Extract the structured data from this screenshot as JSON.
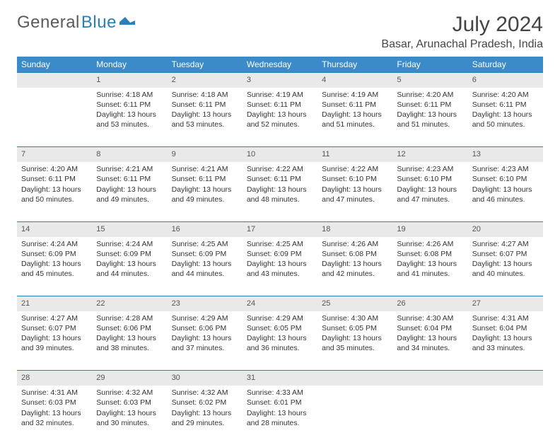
{
  "brand": {
    "part1": "General",
    "part2": "Blue"
  },
  "title": "July 2024",
  "location": "Basar, Arunachal Pradesh, India",
  "colors": {
    "header_bg": "#3b8bc8",
    "header_text": "#ffffff",
    "daynum_bg": "#e9e9e9",
    "rule": "#2a7fba",
    "text": "#333333",
    "logo_gray": "#5a5a5a",
    "logo_blue": "#2a7fba"
  },
  "typography": {
    "month_title_size": 30,
    "location_size": 16,
    "weekday_size": 12,
    "cell_size": 10.5
  },
  "weekdays": [
    "Sunday",
    "Monday",
    "Tuesday",
    "Wednesday",
    "Thursday",
    "Friday",
    "Saturday"
  ],
  "start_offset": 1,
  "days": [
    {
      "n": 1,
      "sunrise": "4:18 AM",
      "sunset": "6:11 PM",
      "daylight": "13 hours and 53 minutes."
    },
    {
      "n": 2,
      "sunrise": "4:18 AM",
      "sunset": "6:11 PM",
      "daylight": "13 hours and 53 minutes."
    },
    {
      "n": 3,
      "sunrise": "4:19 AM",
      "sunset": "6:11 PM",
      "daylight": "13 hours and 52 minutes."
    },
    {
      "n": 4,
      "sunrise": "4:19 AM",
      "sunset": "6:11 PM",
      "daylight": "13 hours and 51 minutes."
    },
    {
      "n": 5,
      "sunrise": "4:20 AM",
      "sunset": "6:11 PM",
      "daylight": "13 hours and 51 minutes."
    },
    {
      "n": 6,
      "sunrise": "4:20 AM",
      "sunset": "6:11 PM",
      "daylight": "13 hours and 50 minutes."
    },
    {
      "n": 7,
      "sunrise": "4:20 AM",
      "sunset": "6:11 PM",
      "daylight": "13 hours and 50 minutes."
    },
    {
      "n": 8,
      "sunrise": "4:21 AM",
      "sunset": "6:11 PM",
      "daylight": "13 hours and 49 minutes."
    },
    {
      "n": 9,
      "sunrise": "4:21 AM",
      "sunset": "6:11 PM",
      "daylight": "13 hours and 49 minutes."
    },
    {
      "n": 10,
      "sunrise": "4:22 AM",
      "sunset": "6:11 PM",
      "daylight": "13 hours and 48 minutes."
    },
    {
      "n": 11,
      "sunrise": "4:22 AM",
      "sunset": "6:10 PM",
      "daylight": "13 hours and 47 minutes."
    },
    {
      "n": 12,
      "sunrise": "4:23 AM",
      "sunset": "6:10 PM",
      "daylight": "13 hours and 47 minutes."
    },
    {
      "n": 13,
      "sunrise": "4:23 AM",
      "sunset": "6:10 PM",
      "daylight": "13 hours and 46 minutes."
    },
    {
      "n": 14,
      "sunrise": "4:24 AM",
      "sunset": "6:09 PM",
      "daylight": "13 hours and 45 minutes."
    },
    {
      "n": 15,
      "sunrise": "4:24 AM",
      "sunset": "6:09 PM",
      "daylight": "13 hours and 44 minutes."
    },
    {
      "n": 16,
      "sunrise": "4:25 AM",
      "sunset": "6:09 PM",
      "daylight": "13 hours and 44 minutes."
    },
    {
      "n": 17,
      "sunrise": "4:25 AM",
      "sunset": "6:09 PM",
      "daylight": "13 hours and 43 minutes."
    },
    {
      "n": 18,
      "sunrise": "4:26 AM",
      "sunset": "6:08 PM",
      "daylight": "13 hours and 42 minutes."
    },
    {
      "n": 19,
      "sunrise": "4:26 AM",
      "sunset": "6:08 PM",
      "daylight": "13 hours and 41 minutes."
    },
    {
      "n": 20,
      "sunrise": "4:27 AM",
      "sunset": "6:07 PM",
      "daylight": "13 hours and 40 minutes."
    },
    {
      "n": 21,
      "sunrise": "4:27 AM",
      "sunset": "6:07 PM",
      "daylight": "13 hours and 39 minutes."
    },
    {
      "n": 22,
      "sunrise": "4:28 AM",
      "sunset": "6:06 PM",
      "daylight": "13 hours and 38 minutes."
    },
    {
      "n": 23,
      "sunrise": "4:29 AM",
      "sunset": "6:06 PM",
      "daylight": "13 hours and 37 minutes."
    },
    {
      "n": 24,
      "sunrise": "4:29 AM",
      "sunset": "6:05 PM",
      "daylight": "13 hours and 36 minutes."
    },
    {
      "n": 25,
      "sunrise": "4:30 AM",
      "sunset": "6:05 PM",
      "daylight": "13 hours and 35 minutes."
    },
    {
      "n": 26,
      "sunrise": "4:30 AM",
      "sunset": "6:04 PM",
      "daylight": "13 hours and 34 minutes."
    },
    {
      "n": 27,
      "sunrise": "4:31 AM",
      "sunset": "6:04 PM",
      "daylight": "13 hours and 33 minutes."
    },
    {
      "n": 28,
      "sunrise": "4:31 AM",
      "sunset": "6:03 PM",
      "daylight": "13 hours and 32 minutes."
    },
    {
      "n": 29,
      "sunrise": "4:32 AM",
      "sunset": "6:03 PM",
      "daylight": "13 hours and 30 minutes."
    },
    {
      "n": 30,
      "sunrise": "4:32 AM",
      "sunset": "6:02 PM",
      "daylight": "13 hours and 29 minutes."
    },
    {
      "n": 31,
      "sunrise": "4:33 AM",
      "sunset": "6:01 PM",
      "daylight": "13 hours and 28 minutes."
    }
  ],
  "labels": {
    "sunrise": "Sunrise:",
    "sunset": "Sunset:",
    "daylight": "Daylight:"
  }
}
